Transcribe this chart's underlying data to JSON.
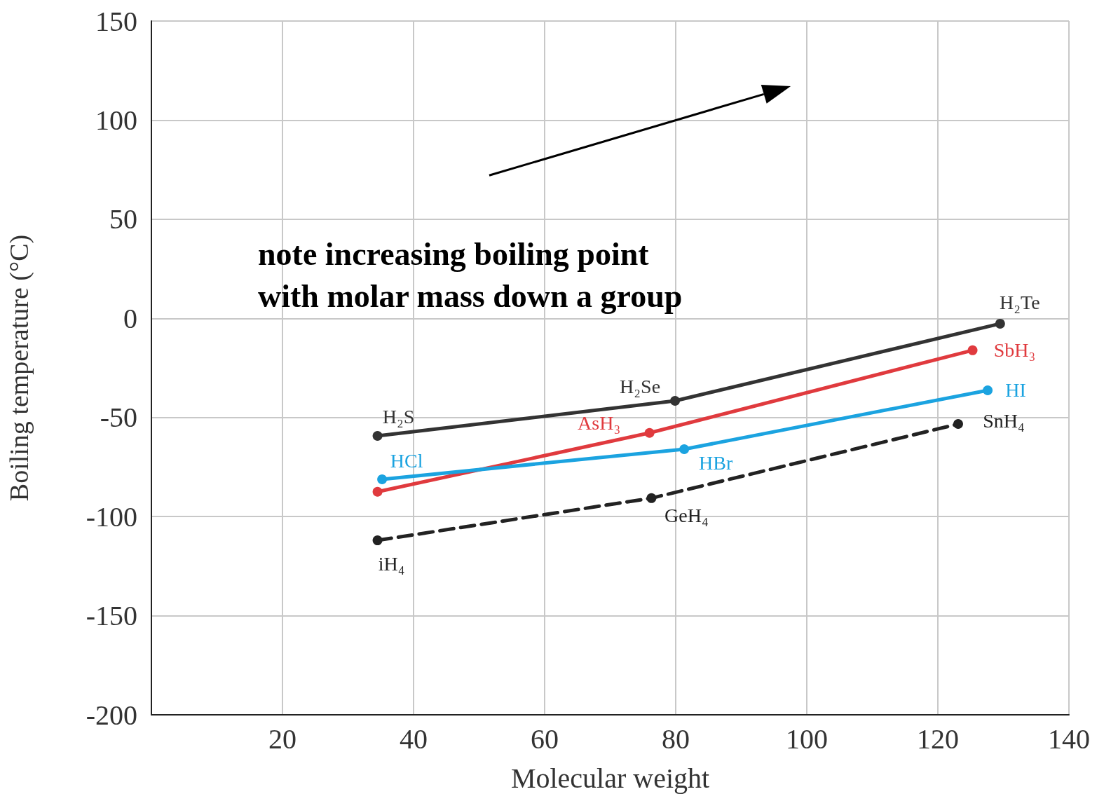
{
  "chart_data": {
    "type": "line",
    "xlabel": "Molecular weight",
    "ylabel": "Boiling temperature (°C)",
    "xlim": [
      0,
      140
    ],
    "xticks": [
      20,
      40,
      60,
      80,
      100,
      120,
      140
    ],
    "ylim": [
      -200,
      150
    ],
    "yticks": [
      -200,
      -150,
      -100,
      -50,
      0,
      50,
      100,
      150
    ],
    "grid": true,
    "marker": "circle",
    "series": [
      {
        "color": "#333333",
        "x": [
          34.5,
          79.9,
          129.5
        ],
        "values": [
          -59.3,
          -41.6,
          -2.7
        ]
      },
      {
        "color": "#e03a3e",
        "x": [
          34.5,
          76,
          125.3
        ],
        "values": [
          -87.5,
          -57.8,
          -16.1
        ]
      },
      {
        "color": "#1ba3e0",
        "x": [
          35.2,
          81.3,
          127.6
        ],
        "values": [
          -81.2,
          -66,
          -36.3
        ]
      },
      {
        "color": "#222222",
        "x": [
          34.5,
          76.3,
          123.1
        ],
        "values": [
          -112,
          -90.7,
          -53.3
        ],
        "line_style": "dashed"
      }
    ],
    "annotations": [
      "note increasing boiling point\nwith molar mass down a group",
      {
        "text": "H₂Te",
        "x": 129.5,
        "y": -2.7
      },
      {
        "text": "SbH₃",
        "x": 125.3,
        "y": -16.1
      },
      {
        "text": "HI",
        "x": 127.6,
        "y": -36.3
      },
      {
        "text": "SnH₄",
        "x": 123.1,
        "y": -53.3
      },
      {
        "text": "H₂Se",
        "x": 79.9,
        "y": -41.6
      },
      {
        "text": "H₂S",
        "x": 34.5,
        "y": -59.3
      },
      {
        "text": "AsH₃",
        "x": 76,
        "y": -57.8
      },
      {
        "text": "HCl",
        "x": 35.2,
        "y": -81.2
      },
      {
        "text": "HBr",
        "x": 81.3,
        "y": -66
      },
      {
        "text": "GeH₄",
        "x": 76.3,
        "y": -90.7
      },
      {
        "text": "iH₄",
        "x": 34.5,
        "y": -112
      }
    ]
  }
}
